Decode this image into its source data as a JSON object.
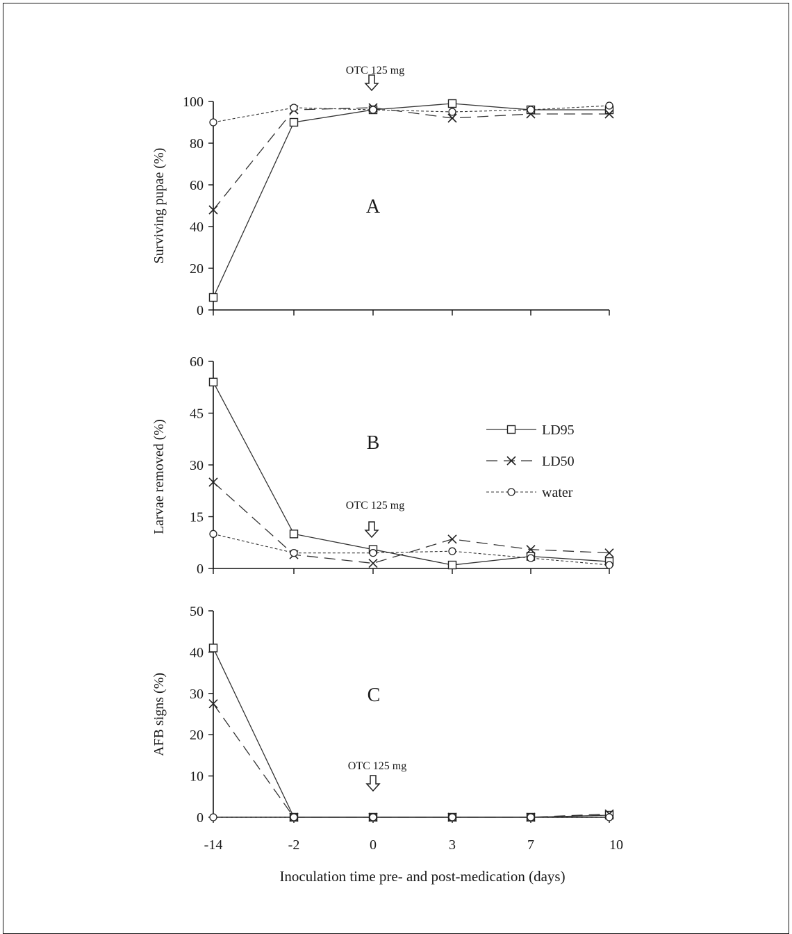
{
  "chart_data": [
    {
      "type": "line",
      "panel_label": "A",
      "ylabel": "Surviving pupae (%)",
      "ylim": [
        0,
        100
      ],
      "yticks": [
        0,
        20,
        40,
        60,
        80,
        100
      ],
      "categories": [
        "-14",
        "-2",
        "0",
        "3",
        "7",
        "10"
      ],
      "annotation": "OTC 125 mg",
      "series": [
        {
          "name": "LD95",
          "values": [
            6,
            90,
            96,
            99,
            96,
            96
          ]
        },
        {
          "name": "LD50",
          "values": [
            48,
            96,
            97,
            92,
            94,
            94
          ]
        },
        {
          "name": "water",
          "values": [
            90,
            97,
            96,
            95,
            96,
            98
          ]
        }
      ]
    },
    {
      "type": "line",
      "panel_label": "B",
      "ylabel": "Larvae removed (%)",
      "ylim": [
        0,
        60
      ],
      "yticks": [
        0,
        15,
        30,
        45,
        60
      ],
      "categories": [
        "-14",
        "-2",
        "0",
        "3",
        "7",
        "10"
      ],
      "annotation": "OTC 125 mg",
      "legend": [
        "LD95",
        "LD50",
        "water"
      ],
      "series": [
        {
          "name": "LD95",
          "values": [
            54,
            10,
            5.5,
            1,
            3.5,
            2
          ]
        },
        {
          "name": "LD50",
          "values": [
            25,
            4,
            1.5,
            8.5,
            5.5,
            4.5
          ]
        },
        {
          "name": "water",
          "values": [
            10,
            4.5,
            4.5,
            5,
            3,
            1
          ]
        }
      ]
    },
    {
      "type": "line",
      "panel_label": "C",
      "ylabel": "AFB signs (%)",
      "xlabel": "Inoculation time pre- and post-medication (days)",
      "ylim": [
        0,
        50
      ],
      "yticks": [
        0,
        10,
        20,
        30,
        40,
        50
      ],
      "categories": [
        "-14",
        "-2",
        "0",
        "3",
        "7",
        "10"
      ],
      "annotation": "OTC 125 mg",
      "series": [
        {
          "name": "LD95",
          "values": [
            41,
            0,
            0,
            0,
            0,
            0.5
          ]
        },
        {
          "name": "LD50",
          "values": [
            27.5,
            0,
            0,
            0,
            0,
            0.8
          ]
        },
        {
          "name": "water",
          "values": [
            0,
            0,
            0,
            0,
            0,
            0
          ]
        }
      ]
    }
  ]
}
